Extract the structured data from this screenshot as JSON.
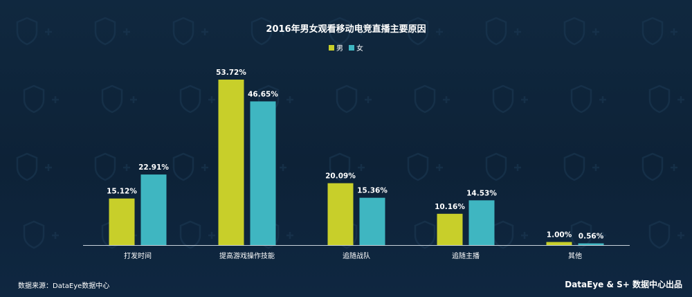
{
  "chart_data": {
    "type": "bar",
    "title": "2016年男女观看移动电竞直播主要原因",
    "categories": [
      "打发时间",
      "提高游戏操作技能",
      "追随战队",
      "追随主播",
      "其他"
    ],
    "series": [
      {
        "name": "男",
        "color": "#c8cf2a",
        "values": [
          15.12,
          53.72,
          20.09,
          10.16,
          1.0
        ],
        "labels": [
          "15.12%",
          "53.72%",
          "20.09%",
          "10.16%",
          "1.00%"
        ]
      },
      {
        "name": "女",
        "color": "#3fb6c1",
        "values": [
          22.91,
          46.65,
          15.36,
          14.53,
          0.56
        ],
        "labels": [
          "22.91%",
          "46.65%",
          "15.36%",
          "14.53%",
          "0.56%"
        ]
      }
    ],
    "xlabel": "",
    "ylabel": "",
    "ylim": [
      0,
      60
    ],
    "grid": false,
    "legend_position": "top-center"
  },
  "footer": {
    "source": "数据来源：DataEye数据中心",
    "credit": "DataEye & S+ 数据中心出品"
  },
  "colors": {
    "background": "#0f2740",
    "axis": "#c9d3dc",
    "watermark": "#1d3a55"
  }
}
